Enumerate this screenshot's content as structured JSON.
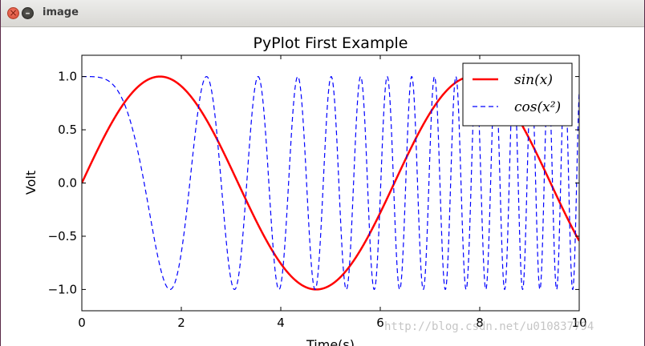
{
  "window": {
    "title": "image",
    "close_icon": "close-icon",
    "minimize_icon": "minimize-icon"
  },
  "chart_data": {
    "type": "line",
    "title": "PyPlot First Example",
    "xlabel": "Time(s)",
    "ylabel": "Volt",
    "xlim": [
      0,
      10
    ],
    "ylim": [
      -1.2,
      1.2
    ],
    "xticks": [
      0,
      2,
      4,
      6,
      8,
      10
    ],
    "xtick_labels": [
      "0",
      "2",
      "4",
      "6",
      "8",
      "10"
    ],
    "yticks": [
      1.0,
      0.5,
      0.0,
      -0.5,
      -1.0
    ],
    "ytick_labels": [
      "1.0",
      "0.5",
      "0.0",
      "−0.5",
      "−1.0"
    ],
    "grid": false,
    "legend_position": "top-right",
    "series": [
      {
        "name": "sin(x)",
        "function": "sin(x)",
        "color": "#ff0000",
        "linestyle": "solid",
        "x_range": [
          0,
          10
        ],
        "x": [
          0,
          0.5,
          1.0,
          1.5708,
          2.0,
          2.5,
          3.0,
          3.5,
          4.0,
          4.7124,
          5.0,
          5.5,
          6.0,
          6.5,
          7.0,
          7.854,
          8.5,
          9.0,
          9.5,
          10.0
        ],
        "y": [
          0,
          0.479,
          0.841,
          1.0,
          0.909,
          0.598,
          0.141,
          -0.351,
          -0.757,
          -1.0,
          -0.959,
          -0.706,
          -0.279,
          0.215,
          0.657,
          1.0,
          0.798,
          0.412,
          -0.075,
          -0.544
        ]
      },
      {
        "name": "cos(x²)",
        "function": "cos(x^2)",
        "color": "#0000ff",
        "linestyle": "dashed",
        "x_range": [
          0,
          10
        ],
        "x": [
          0,
          0.5,
          1.0,
          1.7725,
          2.5066,
          3.07,
          3.5449,
          4.0
        ],
        "y": [
          1.0,
          0.969,
          0.54,
          -1.0,
          1.0,
          -1.0,
          1.0,
          -0.958
        ]
      }
    ]
  },
  "watermark": "http://blog.csdn.net/u010837794"
}
